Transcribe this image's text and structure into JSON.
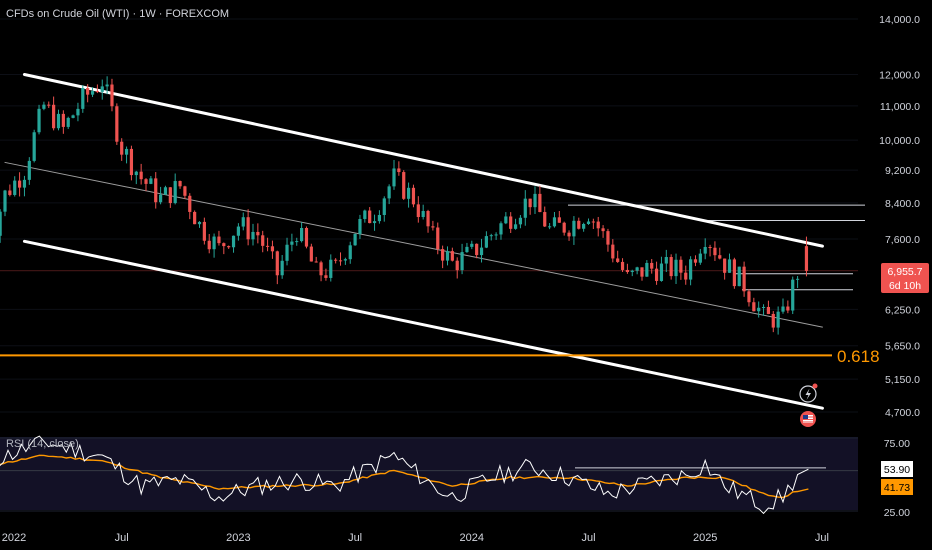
{
  "header": {
    "title": "CFDs on Crude Oil (WTI) · 1W · FOREXCOM"
  },
  "price_badge": {
    "value": "6,955.7",
    "countdown": "6d 10h"
  },
  "fib_label": "0.618",
  "rsi_pane": {
    "label": "RSI (14, close)",
    "rsi_value": "53.90",
    "rsi_ma_value": "41.73"
  },
  "colors": {
    "background": "#000000",
    "up": "#26a69a",
    "down": "#ef5350",
    "channel": "#ffffff",
    "midline": "#9e9e9e",
    "fib": "#ff9800",
    "rsi_line": "#ffffff",
    "rsi_ma": "#ff9800",
    "text": "#d1d4dc"
  },
  "icons": [
    "lightning-icon",
    "us-flag-icon"
  ],
  "chart_data": [
    {
      "type": "candlestick",
      "title": "CFDs on Crude Oil (WTI) · 1W · FOREXCOM",
      "scale": "log",
      "x_ticks": [
        "2022",
        "Jul",
        "2023",
        "Jul",
        "2024",
        "Jul",
        "2025",
        "Jul"
      ],
      "y_ticks": [
        14000,
        12000,
        11000,
        10000,
        9200,
        8400,
        7600,
        6955.7,
        6250,
        5650,
        5150,
        4700
      ],
      "y_tick_labels": [
        "14,000.0",
        "12,000.0",
        "11,000.0",
        "10,000.0",
        "9,200.0",
        "8,400.0",
        "7,600.0",
        "6,955.7",
        "6,250.0",
        "5,650.0",
        "5,150.0",
        "4,700.0"
      ],
      "ylim": [
        4450,
        15600
      ],
      "last_price": 6955.7,
      "fib_level": {
        "label": "0.618",
        "value": 5500
      },
      "horizontal_levels": [
        8350,
        8000,
        6900,
        6600
      ],
      "channel": {
        "upper": [
          {
            "x": "2022-02",
            "y": 12000
          },
          {
            "x": "2025-06",
            "y": 7450
          }
        ],
        "lower": [
          {
            "x": "2022-02",
            "y": 7550
          },
          {
            "x": "2025-06",
            "y": 4750
          }
        ],
        "mid": [
          {
            "x": "2022-01",
            "y": 9400
          },
          {
            "x": "2025-06",
            "y": 5950
          }
        ]
      },
      "anchors": [
        [
          "2021-12",
          7200
        ],
        [
          "2022-01",
          8600
        ],
        [
          "2022-02",
          9200
        ],
        [
          "2022-03",
          11000
        ],
        [
          "2022-04",
          10300
        ],
        [
          "2022-05",
          11200
        ],
        [
          "2022-06",
          11800
        ],
        [
          "2022-07",
          9800
        ],
        [
          "2022-08",
          9000
        ],
        [
          "2022-09",
          8500
        ],
        [
          "2022-10",
          8800
        ],
        [
          "2022-11",
          7900
        ],
        [
          "2022-12",
          7400
        ],
        [
          "2023-01",
          7900
        ],
        [
          "2023-02",
          7700
        ],
        [
          "2023-03",
          6900
        ],
        [
          "2023-04",
          7800
        ],
        [
          "2023-05",
          6900
        ],
        [
          "2023-06",
          7000
        ],
        [
          "2023-07",
          7800
        ],
        [
          "2023-08",
          8200
        ],
        [
          "2023-09",
          9000
        ],
        [
          "2023-10",
          8500
        ],
        [
          "2023-11",
          7600
        ],
        [
          "2023-12",
          7100
        ],
        [
          "2024-01",
          7300
        ],
        [
          "2024-02",
          7700
        ],
        [
          "2024-03",
          8100
        ],
        [
          "2024-04",
          8500
        ],
        [
          "2024-05",
          7800
        ],
        [
          "2024-06",
          7900
        ],
        [
          "2024-07",
          8200
        ],
        [
          "2024-08",
          7500
        ],
        [
          "2024-09",
          6800
        ],
        [
          "2024-10",
          7000
        ],
        [
          "2024-11",
          7000
        ],
        [
          "2024-12",
          6950
        ],
        [
          "2025-01",
          7700
        ],
        [
          "2025-02",
          7100
        ],
        [
          "2025-03",
          6700
        ],
        [
          "2025-04",
          6100
        ],
        [
          "2025-05",
          6100
        ],
        [
          "2025-06",
          7200
        ]
      ]
    },
    {
      "type": "line",
      "title": "RSI (14, close)",
      "y_ticks": [
        75,
        25
      ],
      "y_tick_labels": [
        "75.00",
        "25.00"
      ],
      "ylim": [
        22,
        82
      ],
      "current": {
        "rsi": 53.9,
        "ma": 41.73
      },
      "overbought_level": 55,
      "series": [
        {
          "name": "RSI",
          "anchors": [
            [
              "2021-12",
              60
            ],
            [
              "2022-03",
              76
            ],
            [
              "2022-06",
              65
            ],
            [
              "2022-08",
              44
            ],
            [
              "2022-10",
              48
            ],
            [
              "2022-12",
              36
            ],
            [
              "2023-02",
              44
            ],
            [
              "2023-04",
              48
            ],
            [
              "2023-06",
              44
            ],
            [
              "2023-09",
              66
            ],
            [
              "2023-11",
              44
            ],
            [
              "2023-12",
              36
            ],
            [
              "2024-02",
              50
            ],
            [
              "2024-04",
              58
            ],
            [
              "2024-06",
              50
            ],
            [
              "2024-08",
              38
            ],
            [
              "2024-10",
              46
            ],
            [
              "2024-12",
              52
            ],
            [
              "2025-01",
              60
            ],
            [
              "2025-02",
              44
            ],
            [
              "2025-04",
              30
            ],
            [
              "2025-05",
              36
            ],
            [
              "2025-06",
              56
            ]
          ]
        },
        {
          "name": "RSI-based MA",
          "anchors": [
            [
              "2021-12",
              58
            ],
            [
              "2022-03",
              66
            ],
            [
              "2022-06",
              62
            ],
            [
              "2022-09",
              50
            ],
            [
              "2022-12",
              42
            ],
            [
              "2023-03",
              44
            ],
            [
              "2023-06",
              45
            ],
            [
              "2023-09",
              55
            ],
            [
              "2023-12",
              44
            ],
            [
              "2024-03",
              50
            ],
            [
              "2024-06",
              50
            ],
            [
              "2024-09",
              44
            ],
            [
              "2024-12",
              50
            ],
            [
              "2025-02",
              50
            ],
            [
              "2025-04",
              38
            ],
            [
              "2025-05",
              36
            ],
            [
              "2025-06",
              41.7
            ]
          ]
        }
      ]
    }
  ]
}
